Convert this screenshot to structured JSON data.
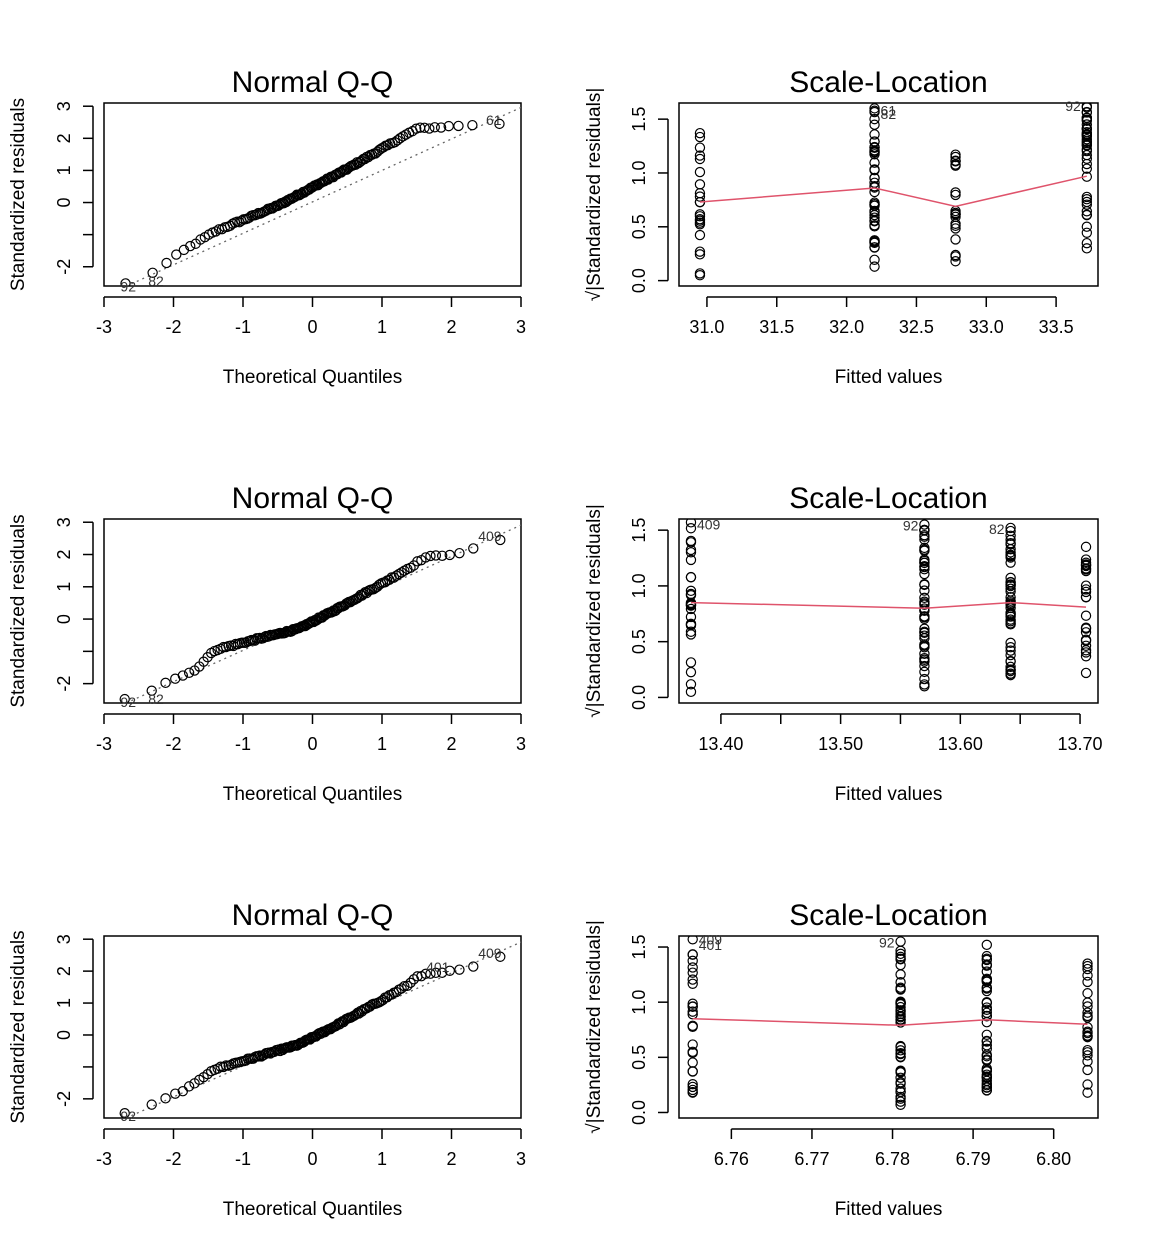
{
  "colors": {
    "smooth_line": "#DF536B",
    "points": "#000000",
    "reference_line": "#666666"
  },
  "chart_data": [
    {
      "type": "scatter",
      "kind": "qq",
      "title": "Normal Q-Q",
      "xlabel": "Theoretical Quantiles",
      "ylabel": "Standardized residuals",
      "xlim": [
        -3,
        3
      ],
      "ylim": [
        -2.6,
        3.1
      ],
      "xticks": [
        -3,
        -2,
        -1,
        0,
        1,
        2,
        3
      ],
      "xticklabels": [
        "-3",
        "-2",
        "-1",
        "0",
        "1",
        "2",
        "3"
      ],
      "yticks": [
        -2,
        -1,
        0,
        1,
        2,
        3
      ],
      "yticklabels": [
        "-2",
        "",
        "0",
        "1",
        "2",
        "3"
      ],
      "reference_line": {
        "slope": 0.98,
        "intercept": 0.02
      },
      "curve_breaks": [
        [
          -2.85,
          -2.52
        ],
        [
          -2.45,
          -2.35
        ],
        [
          -2.2,
          -2.06
        ],
        [
          -1.9,
          -1.55
        ],
        [
          -1.4,
          -0.9
        ],
        [
          -0.5,
          -0.1
        ],
        [
          0.5,
          1.05
        ],
        [
          1.5,
          2.3
        ],
        [
          2.5,
          2.45
        ],
        [
          2.85,
          2.45
        ]
      ],
      "n_points": 140,
      "point_labels": [
        {
          "text": "92",
          "x": -2.85,
          "y": -2.52,
          "anchor": "left"
        },
        {
          "text": "82",
          "x": -2.45,
          "y": -2.35,
          "anchor": "left"
        },
        {
          "text": "61",
          "x": 2.85,
          "y": 2.45,
          "anchor": "right"
        }
      ]
    },
    {
      "type": "scatter",
      "kind": "scale-location",
      "title": "Scale-Location",
      "xlabel": "Fitted values",
      "ylabel": "√|Standardized residuals|",
      "xlim": [
        30.8,
        33.8
      ],
      "ylim": [
        -0.05,
        1.65
      ],
      "xticks": [
        31.0,
        31.5,
        32.0,
        32.5,
        33.0,
        33.5
      ],
      "xticklabels": [
        "31.0",
        "31.5",
        "32.0",
        "32.5",
        "33.0",
        "33.5"
      ],
      "yticks": [
        0.0,
        0.5,
        1.0,
        1.5
      ],
      "yticklabels": [
        "0.0",
        "0.5",
        "1.0",
        "1.5"
      ],
      "groups": [
        {
          "x": 30.95,
          "min": 0.05,
          "max": 1.37,
          "n": 22
        },
        {
          "x": 32.2,
          "min": 0.13,
          "max": 1.6,
          "n": 45
        },
        {
          "x": 32.78,
          "min": 0.18,
          "max": 1.17,
          "n": 22
        },
        {
          "x": 33.72,
          "min": 0.3,
          "max": 1.62,
          "n": 40
        }
      ],
      "smooth": [
        [
          30.95,
          0.73
        ],
        [
          32.2,
          0.86
        ],
        [
          32.78,
          0.69
        ],
        [
          33.72,
          0.97
        ]
      ],
      "point_labels": [
        {
          "text": "61",
          "x": 32.2,
          "y": 1.58,
          "anchor": "right-of"
        },
        {
          "text": "82",
          "x": 32.2,
          "y": 1.55,
          "anchor": "right-of"
        },
        {
          "text": "92",
          "x": 33.72,
          "y": 1.62,
          "anchor": "left-of"
        }
      ]
    },
    {
      "type": "scatter",
      "kind": "qq",
      "title": "Normal Q-Q",
      "xlabel": "Theoretical Quantiles",
      "ylabel": "Standardized residuals",
      "xlim": [
        -3,
        3
      ],
      "ylim": [
        -2.6,
        3.1
      ],
      "xticks": [
        -3,
        -2,
        -1,
        0,
        1,
        2,
        3
      ],
      "xticklabels": [
        "-3",
        "-2",
        "-1",
        "0",
        "1",
        "2",
        "3"
      ],
      "yticks": [
        -2,
        -1,
        0,
        1,
        2,
        3
      ],
      "yticklabels": [
        "-2",
        "",
        "0",
        "1",
        "2",
        "3"
      ],
      "reference_line": {
        "slope": 0.97,
        "intercept": 0.0
      },
      "curve_breaks": [
        [
          -2.85,
          -2.48
        ],
        [
          -2.45,
          -2.38
        ],
        [
          -2.15,
          -1.98
        ],
        [
          -1.7,
          -1.6
        ],
        [
          -1.4,
          -0.95
        ],
        [
          -0.2,
          -0.3
        ],
        [
          0.3,
          0.25
        ],
        [
          1.0,
          1.1
        ],
        [
          1.4,
          1.6
        ],
        [
          1.6,
          1.9
        ],
        [
          2.1,
          2.05
        ],
        [
          2.85,
          2.45
        ]
      ],
      "n_points": 145,
      "point_labels": [
        {
          "text": "92",
          "x": -2.85,
          "y": -2.48,
          "anchor": "left"
        },
        {
          "text": "82",
          "x": -2.45,
          "y": -2.38,
          "anchor": "left"
        },
        {
          "text": "409",
          "x": 2.85,
          "y": 2.45,
          "anchor": "right"
        }
      ]
    },
    {
      "type": "scatter",
      "kind": "scale-location",
      "title": "Scale-Location",
      "xlabel": "Fitted values",
      "ylabel": "√|Standardized residuals|",
      "xlim": [
        13.365,
        13.715
      ],
      "ylim": [
        -0.05,
        1.6
      ],
      "xticks": [
        13.4,
        13.45,
        13.5,
        13.55,
        13.6,
        13.65,
        13.7
      ],
      "xticklabels": [
        "13.40",
        "",
        "13.50",
        "",
        "13.60",
        "",
        "13.70"
      ],
      "yticks": [
        0.0,
        0.5,
        1.0,
        1.5
      ],
      "yticklabels": [
        "0.0",
        "0.5",
        "1.0",
        "1.5"
      ],
      "groups": [
        {
          "x": 13.375,
          "min": 0.05,
          "max": 1.57,
          "n": 28
        },
        {
          "x": 13.57,
          "min": 0.1,
          "max": 1.55,
          "n": 50
        },
        {
          "x": 13.642,
          "min": 0.2,
          "max": 1.52,
          "n": 48
        },
        {
          "x": 13.705,
          "min": 0.22,
          "max": 1.35,
          "n": 25
        }
      ],
      "smooth": [
        [
          13.375,
          0.85
        ],
        [
          13.57,
          0.8
        ],
        [
          13.642,
          0.85
        ],
        [
          13.705,
          0.81
        ]
      ],
      "point_labels": [
        {
          "text": "409",
          "x": 13.375,
          "y": 1.55,
          "anchor": "right-of"
        },
        {
          "text": "92",
          "x": 13.57,
          "y": 1.54,
          "anchor": "left-of"
        },
        {
          "text": "82",
          "x": 13.642,
          "y": 1.51,
          "anchor": "left-of"
        }
      ]
    },
    {
      "type": "scatter",
      "kind": "qq",
      "title": "Normal Q-Q",
      "xlabel": "Theoretical Quantiles",
      "ylabel": "Standardized residuals",
      "xlim": [
        -3,
        3
      ],
      "ylim": [
        -2.6,
        3.1
      ],
      "xticks": [
        -3,
        -2,
        -1,
        0,
        1,
        2,
        3
      ],
      "xticklabels": [
        "-3",
        "-2",
        "-1",
        "0",
        "1",
        "2",
        "3"
      ],
      "yticks": [
        -2,
        -1,
        0,
        1,
        2,
        3
      ],
      "yticklabels": [
        "-2",
        "",
        "0",
        "1",
        "2",
        "3"
      ],
      "reference_line": {
        "slope": 0.97,
        "intercept": 0.0
      },
      "curve_breaks": [
        [
          -2.85,
          -2.45
        ],
        [
          -2.45,
          -2.3
        ],
        [
          -2.2,
          -2.1
        ],
        [
          -1.7,
          -1.55
        ],
        [
          -1.45,
          -1.1
        ],
        [
          -0.2,
          -0.3
        ],
        [
          0.3,
          0.25
        ],
        [
          1.0,
          1.1
        ],
        [
          1.4,
          1.6
        ],
        [
          1.5,
          1.85
        ],
        [
          2.2,
          2.05
        ],
        [
          2.85,
          2.45
        ]
      ],
      "n_points": 145,
      "point_labels": [
        {
          "text": "92",
          "x": -2.85,
          "y": -2.45,
          "anchor": "left"
        },
        {
          "text": "401",
          "x": 2.1,
          "y": 2.0,
          "anchor": "right"
        },
        {
          "text": "409",
          "x": 2.85,
          "y": 2.45,
          "anchor": "right"
        }
      ]
    },
    {
      "type": "scatter",
      "kind": "scale-location",
      "title": "Scale-Location",
      "xlabel": "Fitted values",
      "ylabel": "√|Standardized residuals|",
      "xlim": [
        6.7535,
        6.8055
      ],
      "ylim": [
        -0.05,
        1.6
      ],
      "xticks": [
        6.76,
        6.77,
        6.78,
        6.79,
        6.8
      ],
      "xticklabels": [
        "6.76",
        "6.77",
        "6.78",
        "6.79",
        "6.80"
      ],
      "yticks": [
        0.0,
        0.5,
        1.0,
        1.5
      ],
      "yticklabels": [
        "0.0",
        "0.5",
        "1.0",
        "1.5"
      ],
      "groups": [
        {
          "x": 6.7552,
          "min": 0.18,
          "max": 1.57,
          "n": 26
        },
        {
          "x": 6.781,
          "min": 0.07,
          "max": 1.55,
          "n": 48
        },
        {
          "x": 6.7917,
          "min": 0.2,
          "max": 1.52,
          "n": 46
        },
        {
          "x": 6.8042,
          "min": 0.18,
          "max": 1.35,
          "n": 24
        }
      ],
      "smooth": [
        [
          6.7552,
          0.85
        ],
        [
          6.781,
          0.79
        ],
        [
          6.7917,
          0.84
        ],
        [
          6.8042,
          0.8
        ]
      ],
      "point_labels": [
        {
          "text": "409",
          "x": 6.7552,
          "y": 1.57,
          "anchor": "right-of"
        },
        {
          "text": "401",
          "x": 6.7552,
          "y": 1.52,
          "anchor": "right-of"
        },
        {
          "text": "92",
          "x": 6.781,
          "y": 1.54,
          "anchor": "left-of"
        }
      ]
    }
  ]
}
